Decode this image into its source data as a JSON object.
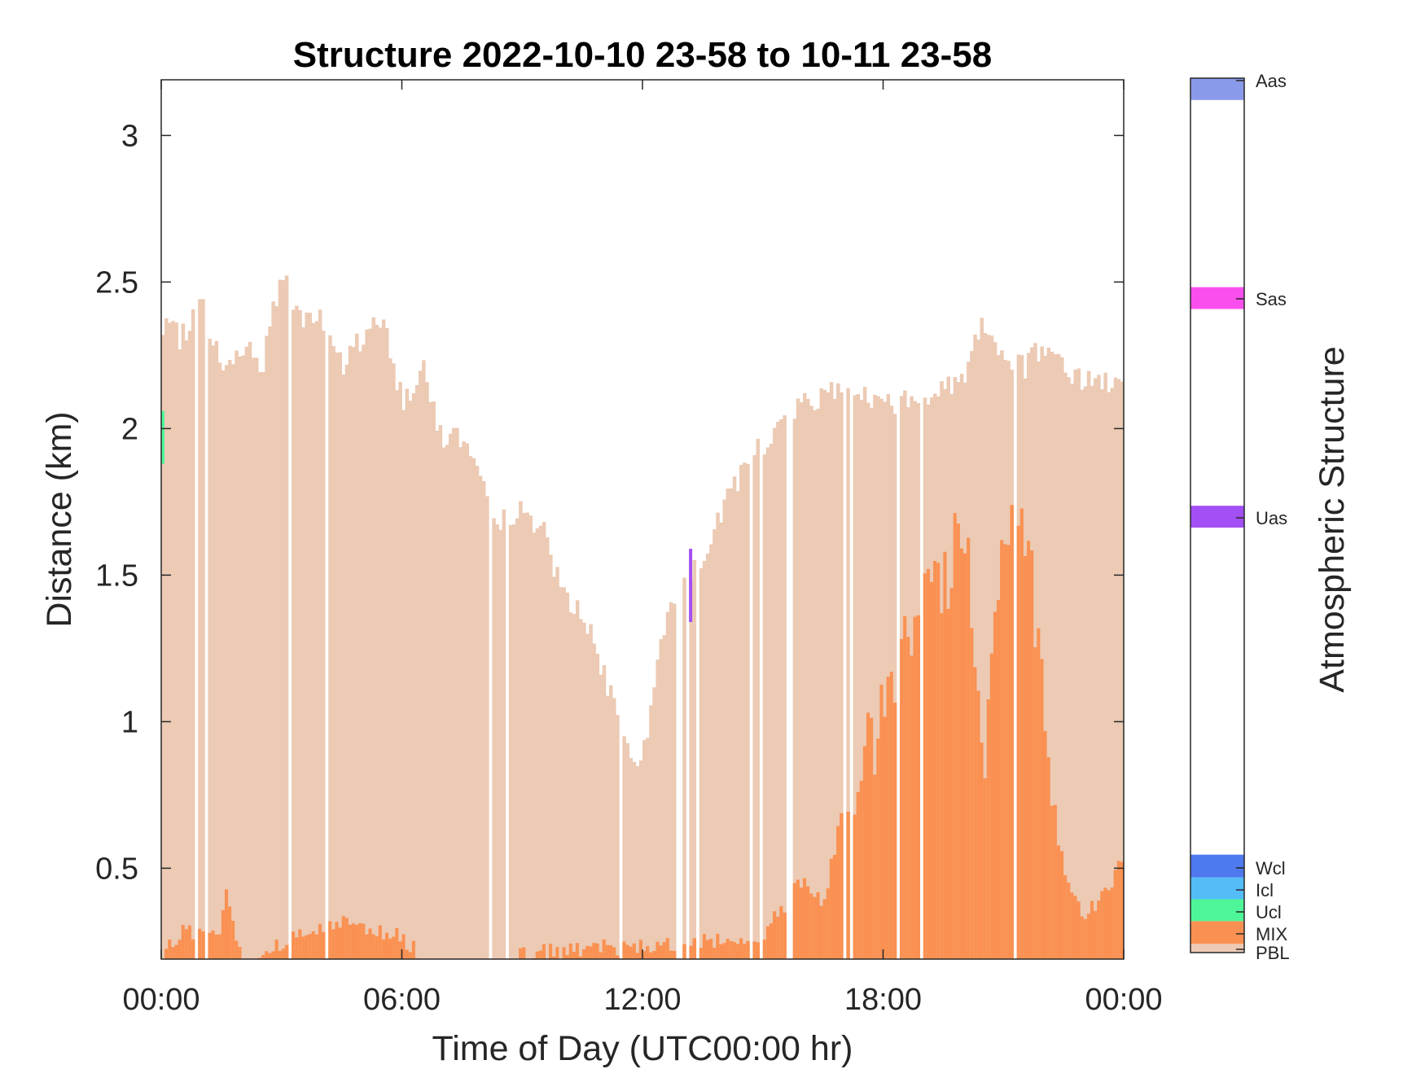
{
  "chart_data": {
    "type": "bar",
    "title": "Structure 2022-10-10 23-58 to 10-11 23-58",
    "xlabel": "Time of Day (UTC00:00 hr)",
    "ylabel": "Distance (km)",
    "xlim": [
      0,
      24
    ],
    "ylim": [
      0.19,
      3.19
    ],
    "xticks": [
      {
        "value": 0,
        "label": "00:00"
      },
      {
        "value": 6,
        "label": "06:00"
      },
      {
        "value": 12,
        "label": "12:00"
      },
      {
        "value": 18,
        "label": "18:00"
      },
      {
        "value": 24,
        "label": "00:00"
      }
    ],
    "yticks": [
      {
        "value": 0.5,
        "label": "0.5"
      },
      {
        "value": 1,
        "label": "1"
      },
      {
        "value": 1.5,
        "label": "1.5"
      },
      {
        "value": 2,
        "label": "2"
      },
      {
        "value": 2.5,
        "label": "2.5"
      },
      {
        "value": 3,
        "label": "3"
      }
    ],
    "grid": false,
    "colorbar": {
      "label": "Atmospheric Structure",
      "categories": [
        {
          "name": "PBL",
          "color": "#ECCAB4"
        },
        {
          "name": "MIX",
          "color": "#FA9152"
        },
        {
          "name": "Ucl",
          "color": "#4FF699"
        },
        {
          "name": "Icl",
          "color": "#54BDF8"
        },
        {
          "name": "Wcl",
          "color": "#4F79EF"
        },
        {
          "name": "Uas",
          "color": "#A34FF5"
        },
        {
          "name": "Sas",
          "color": "#FA4FED"
        },
        {
          "name": "Aas",
          "color": "#8A9AEA"
        }
      ]
    },
    "series": [
      {
        "category": "PBL",
        "points": [
          [
            0.0,
            2.34
          ],
          [
            0.5,
            2.31
          ],
          [
            1.0,
            2.43
          ],
          [
            1.5,
            2.21
          ],
          [
            2.0,
            2.29
          ],
          [
            2.5,
            2.21
          ],
          [
            3.0,
            2.54
          ],
          [
            3.5,
            2.37
          ],
          [
            4.0,
            2.37
          ],
          [
            4.5,
            2.21
          ],
          [
            5.0,
            2.31
          ],
          [
            5.5,
            2.39
          ],
          [
            6.0,
            2.09
          ],
          [
            6.5,
            2.21
          ],
          [
            7.0,
            1.97
          ],
          [
            7.5,
            1.97
          ],
          [
            8.0,
            1.79
          ],
          [
            8.5,
            1.69
          ],
          [
            9.0,
            1.73
          ],
          [
            9.5,
            1.66
          ],
          [
            10.0,
            1.45
          ],
          [
            10.5,
            1.37
          ],
          [
            11.0,
            1.18
          ],
          [
            11.5,
            0.94
          ],
          [
            12.0,
            0.86
          ],
          [
            12.5,
            1.31
          ],
          [
            13.0,
            1.53
          ],
          [
            13.5,
            1.49
          ],
          [
            14.0,
            1.73
          ],
          [
            14.5,
            1.85
          ],
          [
            15.0,
            1.95
          ],
          [
            15.5,
            2.02
          ],
          [
            16.0,
            2.08
          ],
          [
            16.5,
            2.12
          ],
          [
            17.0,
            2.14
          ],
          [
            17.5,
            2.11
          ],
          [
            18.0,
            2.09
          ],
          [
            18.5,
            2.09
          ],
          [
            19.0,
            2.11
          ],
          [
            19.5,
            2.14
          ],
          [
            20.0,
            2.18
          ],
          [
            20.5,
            2.38
          ],
          [
            21.0,
            2.25
          ],
          [
            21.5,
            2.21
          ],
          [
            22.0,
            2.28
          ],
          [
            22.5,
            2.21
          ],
          [
            23.0,
            2.16
          ],
          [
            23.5,
            2.16
          ],
          [
            24.0,
            2.14
          ]
        ]
      },
      {
        "category": "MIX",
        "points": [
          [
            0.0,
            0.19
          ],
          [
            0.5,
            0.29
          ],
          [
            1.0,
            0.27
          ],
          [
            1.5,
            0.27
          ],
          [
            1.6,
            0.43
          ],
          [
            2.0,
            0.19
          ],
          [
            4.6,
            0.32
          ],
          [
            6.0,
            0.27
          ],
          [
            6.5,
            0.19
          ],
          [
            15.0,
            0.26
          ],
          [
            15.5,
            0.37
          ],
          [
            16.0,
            0.46
          ],
          [
            16.5,
            0.37
          ],
          [
            17.0,
            0.7
          ],
          [
            17.5,
            0.85
          ],
          [
            18.0,
            1.05
          ],
          [
            18.5,
            1.25
          ],
          [
            19.0,
            1.55
          ],
          [
            19.5,
            1.45
          ],
          [
            20.0,
            1.75
          ],
          [
            20.5,
            0.9
          ],
          [
            21.0,
            1.55
          ],
          [
            21.5,
            1.75
          ],
          [
            22.0,
            1.05
          ],
          [
            22.5,
            0.5
          ],
          [
            23.0,
            0.35
          ],
          [
            23.5,
            0.4
          ],
          [
            24.0,
            0.55
          ]
        ]
      },
      {
        "category": "Ucl",
        "points": [
          [
            0.0,
            1.88
          ],
          [
            0.0,
            2.06
          ]
        ]
      },
      {
        "category": "Uas",
        "points": [
          [
            13.2,
            1.34
          ],
          [
            13.2,
            1.59
          ]
        ]
      }
    ]
  }
}
